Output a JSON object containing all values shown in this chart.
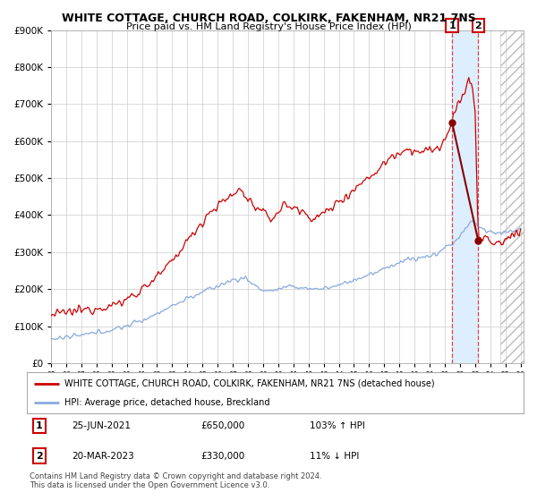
{
  "title": "WHITE COTTAGE, CHURCH ROAD, COLKIRK, FAKENHAM, NR21 7NS",
  "subtitle": "Price paid vs. HM Land Registry's House Price Index (HPI)",
  "legend_line1": "WHITE COTTAGE, CHURCH ROAD, COLKIRK, FAKENHAM, NR21 7NS (detached house)",
  "legend_line2": "HPI: Average price, detached house, Breckland",
  "annotation1_date": "25-JUN-2021",
  "annotation1_price": "£650,000",
  "annotation1_hpi": "103% ↑ HPI",
  "annotation2_date": "20-MAR-2023",
  "annotation2_price": "£330,000",
  "annotation2_hpi": "11% ↓ HPI",
  "copyright": "Contains HM Land Registry data © Crown copyright and database right 2024.\nThis data is licensed under the Open Government Licence v3.0.",
  "line1_color": "#cc0000",
  "line2_color": "#88aadd",
  "marker_color": "#880000",
  "vline_color": "#dd4444",
  "highlight_color": "#ddeeff",
  "grid_color": "#cccccc",
  "background_color": "#ffffff",
  "ylim": [
    0,
    900000
  ],
  "ytick_step": 100000,
  "x_start_year": 1995,
  "x_end_year": 2026,
  "sale1_year": 2021.48,
  "sale2_year": 2023.21,
  "sale1_price": 650000,
  "sale2_price": 330000
}
